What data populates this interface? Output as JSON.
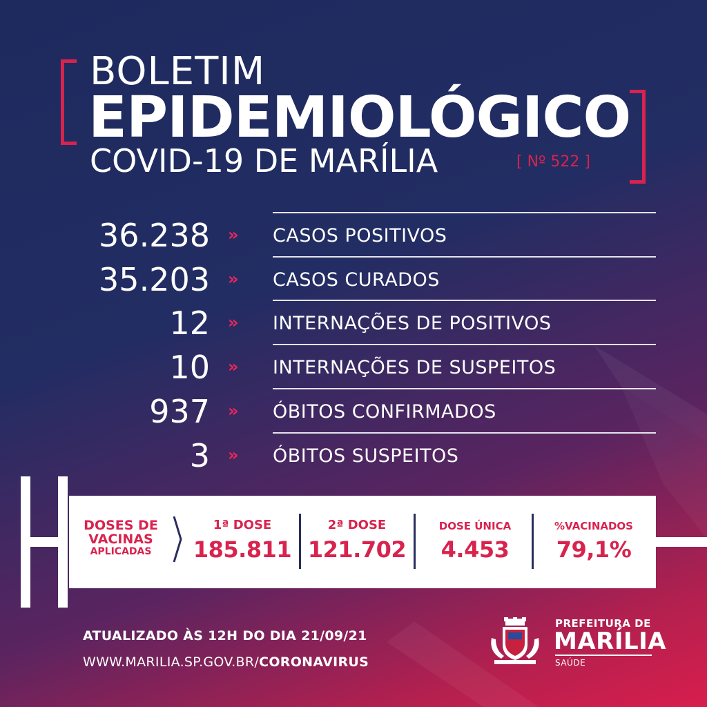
{
  "header": {
    "line1": "BOLETIM",
    "line2": "EPIDEMIOLÓGICO",
    "line3": "COVID-19 DE MARÍLIA",
    "edition": "[ Nº 522 ]"
  },
  "arrow_glyph": "»",
  "stats": [
    {
      "value": "36.238",
      "label": "CASOS POSITIVOS"
    },
    {
      "value": "35.203",
      "label": "CASOS CURADOS"
    },
    {
      "value": "12",
      "label": "INTERNAÇÕES DE POSITIVOS"
    },
    {
      "value": "10",
      "label": "INTERNAÇÕES DE SUSPEITOS"
    },
    {
      "value": "937",
      "label": "ÓBITOS CONFIRMADOS"
    },
    {
      "value": "3",
      "label": "ÓBITOS SUSPEITOS"
    }
  ],
  "vaccines": {
    "title_l1": "DOSES DE",
    "title_l2": "VACINAS",
    "title_l3": "APLICADAS",
    "columns": [
      {
        "label": "1ª DOSE",
        "value": "185.811"
      },
      {
        "label": "2ª DOSE",
        "value": "121.702"
      },
      {
        "label": "DOSE ÚNICA",
        "value": "4.453"
      },
      {
        "label": "%VACINADOS",
        "value": "79,1%"
      }
    ]
  },
  "footer": {
    "updated": "ATUALIZADO ÀS 12H DO DIA 21/09/21",
    "url_prefix": "WWW.MARILIA.SP.GOV.BR/",
    "url_bold": "CORONAVIRUS"
  },
  "logo": {
    "line1": "PREFEITURA DE",
    "line2": "MARÍLIA",
    "line3": "SAÚDE",
    "icon": "city-crest-icon"
  },
  "colors": {
    "accent": "#d8234f",
    "background_top": "#1e2a5e",
    "background_bottom": "#d81e4d"
  }
}
